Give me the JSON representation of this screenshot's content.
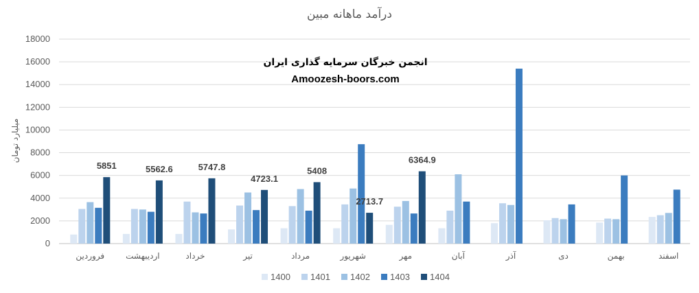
{
  "chart_data": {
    "type": "bar",
    "title": "درآمد ماهانه مبین",
    "ylabel": "میلیارد تومان",
    "xlabel": "",
    "ylim": [
      0,
      18000
    ],
    "yticks": [
      "0",
      "2000",
      "4000",
      "6000",
      "8000",
      "10000",
      "12000",
      "14000",
      "16000",
      "18000"
    ],
    "grid": true,
    "legend_position": "bottom",
    "categories": [
      "فروردین",
      "اردیبهشت",
      "خرداد",
      "تیر",
      "مرداد",
      "شهریور",
      "مهر",
      "آبان",
      "آذر",
      "دی",
      "بهمن",
      "اسفند"
    ],
    "series": [
      {
        "name": "1400",
        "color": "#dde8f5",
        "values": [
          800,
          850,
          850,
          1250,
          1350,
          1350,
          1650,
          1350,
          1800,
          2050,
          1850,
          2350
        ]
      },
      {
        "name": "1401",
        "color": "#bcd3ed",
        "values": [
          3050,
          3050,
          3700,
          3350,
          3300,
          3450,
          3250,
          2900,
          3550,
          2250,
          2200,
          2500
        ]
      },
      {
        "name": "1402",
        "color": "#9cc1e3",
        "values": [
          3650,
          3000,
          2750,
          4500,
          4800,
          4850,
          3750,
          6100,
          3400,
          2150,
          2150,
          2700
        ]
      },
      {
        "name": "1403",
        "color": "#3b7cbf",
        "values": [
          3150,
          2800,
          2650,
          2950,
          2900,
          8750,
          2650,
          3700,
          15400,
          3450,
          6000,
          4750
        ]
      },
      {
        "name": "1404",
        "color": "#1f4e79",
        "values": [
          5851,
          5562.6,
          5747.8,
          4723.1,
          5408,
          2713.7,
          6364.9,
          null,
          null,
          null,
          null,
          null
        ]
      }
    ],
    "data_labels": [
      "5851",
      "5562.6",
      "5747.8",
      "4723.1",
      "5408",
      "2713.7",
      "6364.9"
    ]
  },
  "watermark": {
    "line1": "انجمن خبرگان سرمایه گذاری ایران",
    "line2": "Amoozesh-boors.com"
  }
}
